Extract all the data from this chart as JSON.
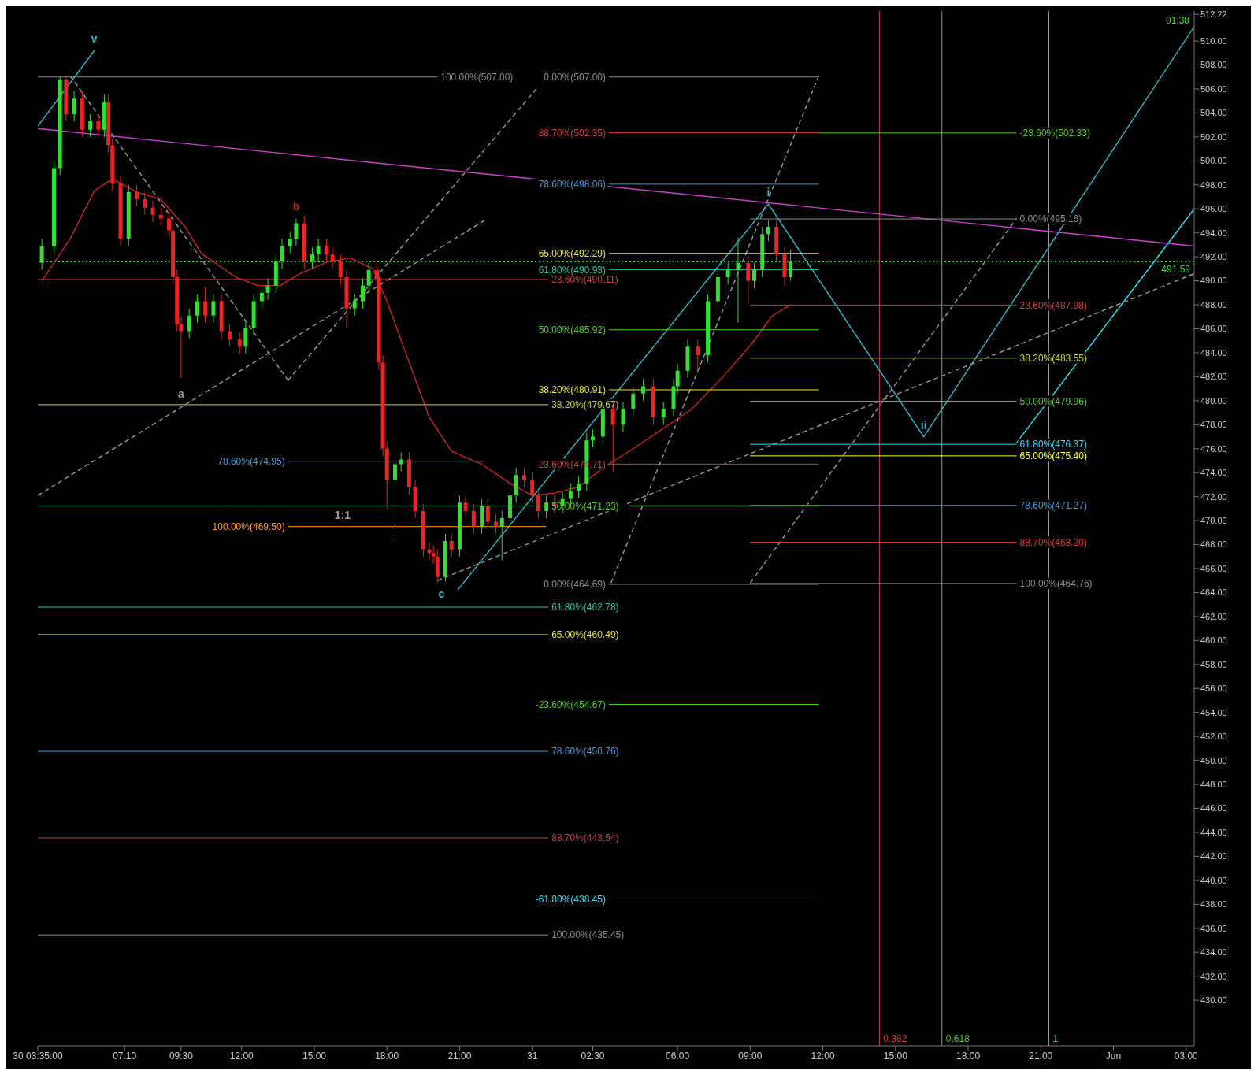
{
  "chart_data": {
    "type": "candlestick",
    "xlim": [
      "--05-30T03:35",
      "--06-01T03:20"
    ],
    "ylim": [
      426.2,
      512.5
    ],
    "xticks": [
      {
        "value": "--05-30T03:35",
        "label": "30 03:35:00"
      },
      {
        "value": "--05-30T07:10",
        "label": "07:10"
      },
      {
        "value": "--05-30T09:30",
        "label": "09:30"
      },
      {
        "value": "--05-30T12:00",
        "label": "12:00"
      },
      {
        "value": "--05-30T15:00",
        "label": "15:00"
      },
      {
        "value": "--05-30T18:00",
        "label": "18:00"
      },
      {
        "value": "--05-30T21:00",
        "label": "21:00"
      },
      {
        "value": "--05-31T00:00",
        "label": "31"
      },
      {
        "value": "--05-31T02:30",
        "label": "02:30"
      },
      {
        "value": "--05-31T06:00",
        "label": "06:00"
      },
      {
        "value": "--05-31T09:00",
        "label": "09:00"
      },
      {
        "value": "--05-31T12:00",
        "label": "12:00"
      },
      {
        "value": "--05-31T15:00",
        "label": "15:00"
      },
      {
        "value": "--05-31T18:00",
        "label": "18:00"
      },
      {
        "value": "--05-31T21:00",
        "label": "21:00"
      },
      {
        "value": "--06-01T00:00",
        "label": "Jun"
      },
      {
        "value": "--06-01T03:00",
        "label": "03:00"
      }
    ],
    "yticks": [
      {
        "value": 430,
        "label": "430.00"
      },
      {
        "value": 432,
        "label": "432.00"
      },
      {
        "value": 434,
        "label": "434.00"
      },
      {
        "value": 436,
        "label": "436.00"
      },
      {
        "value": 438,
        "label": "438.00"
      },
      {
        "value": 440,
        "label": "440.00"
      },
      {
        "value": 442,
        "label": "442.00"
      },
      {
        "value": 444,
        "label": "444.00"
      },
      {
        "value": 446,
        "label": "446.00"
      },
      {
        "value": 448,
        "label": "448.00"
      },
      {
        "value": 450,
        "label": "450.00"
      },
      {
        "value": 452,
        "label": "452.00"
      },
      {
        "value": 454,
        "label": "454.00"
      },
      {
        "value": 456,
        "label": "456.00"
      },
      {
        "value": 458,
        "label": "458.00"
      },
      {
        "value": 460,
        "label": "460.00"
      },
      {
        "value": 462,
        "label": "462.00"
      },
      {
        "value": 464,
        "label": "464.00"
      },
      {
        "value": 466,
        "label": "466.00"
      },
      {
        "value": 468,
        "label": "468.00"
      },
      {
        "value": 470,
        "label": "470.00"
      },
      {
        "value": 472,
        "label": "472.00"
      },
      {
        "value": 474,
        "label": "474.00"
      },
      {
        "value": 476,
        "label": "476.00"
      },
      {
        "value": 478,
        "label": "478.00"
      },
      {
        "value": 480,
        "label": "480.00"
      },
      {
        "value": 482,
        "label": "482.00"
      },
      {
        "value": 484,
        "label": "484.00"
      },
      {
        "value": 486,
        "label": "486.00"
      },
      {
        "value": 488,
        "label": "488.00"
      },
      {
        "value": 490,
        "label": "490.00"
      },
      {
        "value": 492,
        "label": "492.00"
      },
      {
        "value": 494,
        "label": "494.00"
      },
      {
        "value": 496,
        "label": "496.00"
      },
      {
        "value": 498,
        "label": "498.00"
      },
      {
        "value": 500,
        "label": "500.00"
      },
      {
        "value": 502,
        "label": "502.00"
      },
      {
        "value": 504,
        "label": "504.00"
      },
      {
        "value": 506,
        "label": "506.00"
      },
      {
        "value": 508,
        "label": "508.00"
      },
      {
        "value": 510,
        "label": "510.00"
      },
      {
        "value": 512.22,
        "label": "512.22"
      }
    ],
    "x": [
      "--05-30T03:45",
      "--05-30T04:15",
      "--05-30T04:30",
      "--05-30T04:45",
      "--05-30T05:05",
      "--05-30T05:25",
      "--05-30T05:45",
      "--05-30T06:05",
      "--05-30T06:20",
      "--05-30T06:30",
      "--05-30T06:40",
      "--05-30T07:00",
      "--05-30T07:20",
      "--05-30T07:40",
      "--05-30T08:00",
      "--05-30T08:20",
      "--05-30T08:40",
      "--05-30T09:00",
      "--05-30T09:10",
      "--05-30T09:20",
      "--05-30T09:30",
      "--05-30T09:50",
      "--05-30T10:10",
      "--05-30T10:30",
      "--05-30T10:50",
      "--05-30T11:10",
      "--05-30T11:30",
      "--05-30T11:55",
      "--05-30T12:10",
      "--05-30T12:30",
      "--05-30T12:50",
      "--05-30T13:05",
      "--05-30T13:25",
      "--05-30T13:40",
      "--05-30T14:00",
      "--05-30T14:15",
      "--05-30T14:35",
      "--05-30T14:55",
      "--05-30T15:10",
      "--05-30T15:30",
      "--05-30T15:45",
      "--05-30T16:05",
      "--05-30T16:20",
      "--05-30T16:40",
      "--05-30T17:00",
      "--05-30T17:15",
      "--05-30T17:35",
      "--05-30T17:40",
      "--05-30T17:50",
      "--05-30T18:00",
      "--05-30T18:20",
      "--05-30T18:35",
      "--05-30T18:55",
      "--05-30T19:10",
      "--05-30T19:30",
      "--05-30T19:45",
      "--05-30T19:55",
      "--05-30T20:05",
      "--05-30T20:25",
      "--05-30T20:40",
      "--05-30T21:00",
      "--05-30T21:15",
      "--05-30T21:35",
      "--05-30T21:55",
      "--05-30T22:10",
      "--05-30T22:30",
      "--05-30T22:45",
      "--05-30T23:05",
      "--05-30T23:20",
      "--05-30T23:40",
      "--05-31T00:00",
      "--05-31T00:15",
      "--05-31T00:35",
      "--05-31T00:55",
      "--05-31T01:15",
      "--05-31T01:35",
      "--05-31T01:55",
      "--05-31T02:15",
      "--05-31T02:30",
      "--05-31T02:55",
      "--05-31T03:20",
      "--05-31T03:45",
      "--05-31T04:10",
      "--05-31T04:35",
      "--05-31T05:00",
      "--05-31T05:25",
      "--05-31T05:50",
      "--05-31T06:00",
      "--05-31T06:25",
      "--05-31T06:50",
      "--05-31T07:15",
      "--05-31T07:40",
      "--05-31T08:05",
      "--05-31T08:30",
      "--05-31T08:55",
      "--05-31T09:10",
      "--05-31T09:30",
      "--05-31T09:45",
      "--05-31T10:05",
      "--05-31T10:25",
      "--05-31T10:40"
    ],
    "ohlc": [
      [
        491.5,
        493.5,
        490.9,
        492.9
      ],
      [
        492.9,
        500.0,
        492.3,
        499.4
      ],
      [
        499.4,
        507.0,
        498.8,
        506.8
      ],
      [
        506.8,
        507.0,
        503.3,
        503.9
      ],
      [
        503.9,
        505.8,
        503.3,
        505.2
      ],
      [
        505.2,
        505.8,
        502.0,
        502.6
      ],
      [
        502.6,
        503.9,
        502.0,
        503.3
      ],
      [
        503.3,
        503.9,
        502.0,
        502.6
      ],
      [
        502.6,
        505.5,
        502.0,
        504.9
      ],
      [
        504.9,
        505.5,
        500.7,
        501.3
      ],
      [
        501.3,
        501.9,
        497.5,
        498.1
      ],
      [
        498.1,
        498.7,
        492.9,
        493.5
      ],
      [
        493.5,
        498.0,
        492.9,
        497.4
      ],
      [
        497.4,
        498.0,
        496.2,
        496.8
      ],
      [
        496.8,
        497.4,
        495.5,
        496.1
      ],
      [
        496.1,
        496.7,
        494.9,
        495.5
      ],
      [
        495.5,
        496.1,
        494.6,
        495.2
      ],
      [
        495.2,
        495.8,
        493.6,
        494.2
      ],
      [
        494.2,
        494.8,
        489.7,
        490.3
      ],
      [
        490.3,
        490.9,
        485.8,
        486.4
      ],
      [
        486.4,
        487.0,
        481.9,
        485.8
      ],
      [
        485.8,
        487.7,
        485.2,
        487.1
      ],
      [
        487.1,
        488.9,
        486.5,
        488.3
      ],
      [
        488.3,
        489.5,
        486.5,
        487.1
      ],
      [
        487.1,
        488.9,
        486.5,
        488.3
      ],
      [
        488.3,
        488.9,
        485.2,
        485.8
      ],
      [
        485.8,
        486.4,
        484.5,
        485.1
      ],
      [
        485.1,
        485.7,
        483.9,
        484.5
      ],
      [
        484.5,
        486.7,
        483.9,
        486.1
      ],
      [
        486.1,
        488.9,
        485.5,
        488.3
      ],
      [
        488.3,
        489.6,
        487.7,
        489.0
      ],
      [
        489.0,
        490.2,
        488.4,
        489.6
      ],
      [
        489.6,
        492.2,
        489.0,
        491.6
      ],
      [
        491.6,
        493.5,
        491.0,
        492.9
      ],
      [
        492.9,
        494.1,
        492.3,
        493.5
      ],
      [
        493.5,
        495.2,
        492.9,
        494.8
      ],
      [
        494.8,
        495.4,
        491.0,
        491.6
      ],
      [
        491.6,
        492.8,
        491.0,
        492.2
      ],
      [
        492.2,
        493.5,
        491.6,
        492.9
      ],
      [
        492.9,
        493.5,
        491.6,
        492.2
      ],
      [
        492.2,
        492.8,
        491.0,
        491.6
      ],
      [
        491.6,
        492.2,
        489.7,
        490.3
      ],
      [
        490.3,
        490.9,
        486.1,
        487.7
      ],
      [
        487.7,
        488.9,
        487.1,
        488.3
      ],
      [
        488.3,
        490.2,
        487.7,
        489.6
      ],
      [
        489.6,
        491.5,
        489.0,
        490.9
      ],
      [
        490.9,
        491.5,
        489.7,
        490.3
      ],
      [
        490.3,
        490.9,
        482.6,
        483.2
      ],
      [
        483.2,
        483.8,
        475.4,
        476.0
      ],
      [
        476.0,
        476.6,
        471.0,
        473.4
      ],
      [
        473.4,
        477.0,
        468.3,
        474.7
      ],
      [
        474.7,
        475.7,
        474.1,
        475.1
      ],
      [
        475.1,
        475.7,
        472.2,
        472.8
      ],
      [
        472.8,
        473.4,
        470.2,
        470.8
      ],
      [
        470.8,
        471.4,
        467.0,
        467.6
      ],
      [
        467.6,
        468.2,
        466.7,
        467.3
      ],
      [
        467.3,
        467.9,
        466.4,
        467.0
      ],
      [
        467.0,
        467.6,
        464.8,
        465.3
      ],
      [
        465.3,
        468.9,
        464.9,
        468.3
      ],
      [
        468.3,
        468.9,
        467.0,
        467.6
      ],
      [
        467.6,
        472.1,
        467.0,
        471.5
      ],
      [
        471.5,
        472.1,
        470.2,
        470.8
      ],
      [
        470.8,
        471.4,
        468.9,
        469.5
      ],
      [
        469.5,
        471.8,
        468.9,
        471.2
      ],
      [
        471.2,
        471.8,
        469.3,
        469.9
      ],
      [
        469.9,
        470.5,
        468.9,
        469.5
      ],
      [
        469.5,
        470.8,
        466.7,
        470.2
      ],
      [
        470.2,
        472.7,
        469.6,
        472.1
      ],
      [
        472.1,
        474.4,
        471.5,
        473.8
      ],
      [
        473.8,
        474.4,
        472.8,
        473.4
      ],
      [
        473.4,
        474.0,
        471.5,
        472.1
      ],
      [
        472.1,
        472.7,
        470.2,
        470.8
      ],
      [
        470.8,
        472.1,
        470.2,
        471.5
      ],
      [
        471.5,
        472.1,
        470.6,
        471.2
      ],
      [
        471.2,
        472.4,
        470.6,
        471.8
      ],
      [
        471.8,
        473.1,
        471.2,
        472.5
      ],
      [
        472.5,
        473.7,
        471.9,
        473.1
      ],
      [
        473.1,
        477.3,
        472.5,
        476.7
      ],
      [
        476.7,
        477.6,
        476.1,
        477.0
      ],
      [
        477.0,
        479.9,
        476.4,
        479.3
      ],
      [
        479.3,
        479.9,
        474.0,
        478.0
      ],
      [
        478.0,
        479.9,
        477.4,
        479.3
      ],
      [
        479.3,
        481.2,
        478.7,
        480.6
      ],
      [
        480.6,
        481.8,
        480.0,
        481.2
      ],
      [
        481.2,
        481.8,
        478.0,
        478.6
      ],
      [
        478.6,
        479.9,
        478.0,
        479.3
      ],
      [
        479.3,
        481.8,
        478.7,
        481.2
      ],
      [
        481.2,
        483.1,
        480.6,
        482.5
      ],
      [
        482.5,
        485.1,
        481.9,
        484.5
      ],
      [
        484.5,
        485.1,
        482.3,
        483.8
      ],
      [
        483.8,
        488.9,
        483.2,
        488.3
      ],
      [
        488.3,
        490.9,
        487.7,
        490.3
      ],
      [
        490.3,
        491.5,
        489.7,
        490.9
      ],
      [
        490.9,
        493.6,
        486.5,
        491.5
      ],
      [
        491.5,
        492.1,
        488.1,
        490.0
      ],
      [
        490.0,
        491.5,
        489.4,
        490.9
      ],
      [
        490.9,
        494.5,
        490.3,
        493.9
      ],
      [
        493.9,
        495.0,
        493.3,
        494.5
      ],
      [
        494.5,
        495.0,
        491.6,
        492.2
      ],
      [
        492.2,
        492.8,
        489.6,
        490.3
      ],
      [
        490.3,
        492.6,
        490.0,
        491.6
      ]
    ],
    "colors": [
      "#33dd33",
      "#33dd33",
      "#33dd33",
      "#ee2222",
      "#33dd33",
      "#ee2222",
      "#33dd33",
      "#ee2222",
      "#33dd33",
      "#ee2222",
      "#ee2222",
      "#ee2222",
      "#33dd33",
      "#ee2222",
      "#ee2222",
      "#ee2222",
      "#ee2222",
      "#ee2222",
      "#ee2222",
      "#ee2222",
      "#ee2222",
      "#33dd33",
      "#33dd33",
      "#ee2222",
      "#33dd33",
      "#ee2222",
      "#ee2222",
      "#ee2222",
      "#33dd33",
      "#33dd33",
      "#33dd33",
      "#33dd33",
      "#33dd33",
      "#33dd33",
      "#33dd33",
      "#33dd33",
      "#ee2222",
      "#33dd33",
      "#33dd33",
      "#ee2222",
      "#ee2222",
      "#ee2222",
      "#ee2222",
      "#33dd33",
      "#33dd33",
      "#33dd33",
      "#ee2222",
      "#ee2222",
      "#ee2222",
      "#ee2222",
      "#33dd33",
      "#33dd33",
      "#ee2222",
      "#ee2222",
      "#ee2222",
      "#ee2222",
      "#ee2222",
      "#ee2222",
      "#33dd33",
      "#ee2222",
      "#33dd33",
      "#ee2222",
      "#ee2222",
      "#33dd33",
      "#ee2222",
      "#ee2222",
      "#33dd33",
      "#33dd33",
      "#33dd33",
      "#ee2222",
      "#ee2222",
      "#ee2222",
      "#33dd33",
      "#ee2222",
      "#33dd33",
      "#33dd33",
      "#33dd33",
      "#33dd33",
      "#33dd33",
      "#33dd33",
      "#ee2222",
      "#33dd33",
      "#33dd33",
      "#33dd33",
      "#ee2222",
      "#33dd33",
      "#33dd33",
      "#33dd33",
      "#33dd33",
      "#ee2222",
      "#33dd33",
      "#33dd33",
      "#33dd33",
      "#33dd33",
      "#ee2222",
      "#33dd33",
      "#33dd33",
      "#33dd33",
      "#ee2222",
      "#ee2222",
      "#33dd33"
    ],
    "series": [
      {
        "type": "line",
        "color": "#cc2222",
        "x": [
          "--05-30T03:45",
          "--05-30T04:55",
          "--05-30T05:55",
          "--05-30T06:40",
          "--05-30T07:40",
          "--05-30T08:40",
          "--05-30T09:40",
          "--05-30T10:20",
          "--05-30T11:45",
          "--05-30T12:40",
          "--05-30T13:35",
          "--05-30T14:25",
          "--05-30T15:35",
          "--05-30T16:30",
          "--05-30T17:25",
          "--05-30T18:00",
          "--05-30T18:55",
          "--05-30T19:45",
          "--05-30T20:40",
          "--05-30T21:55",
          "--05-30T23:05",
          "--05-31T00:00",
          "--05-31T00:55",
          "--05-31T01:55",
          "--05-31T02:55",
          "--05-31T04:10",
          "--05-31T05:25",
          "--05-31T06:35",
          "--05-31T07:50",
          "--05-31T09:05",
          "--05-31T09:55",
          "--05-31T10:40"
        ],
        "values": [
          490.0,
          493.5,
          497.5,
          498.5,
          497.4,
          496.8,
          494.5,
          492.3,
          490.3,
          489.6,
          489.6,
          490.6,
          491.6,
          491.9,
          491.0,
          488.3,
          483.2,
          478.6,
          475.8,
          474.7,
          473.1,
          472.1,
          472.3,
          472.8,
          474.4,
          476.0,
          477.7,
          479.3,
          481.9,
          484.8,
          487.1,
          488.0
        ]
      },
      {
        "type": "line",
        "color": "#d040d0",
        "x": [
          "--05-30T03:35",
          "--06-01T03:20"
        ],
        "values": [
          502.7,
          492.9
        ]
      },
      {
        "type": "line",
        "color": "#2bbcd0",
        "x": [
          "--05-30T03:35",
          "--05-30T05:55"
        ],
        "values": [
          502.9,
          509.2
        ]
      },
      {
        "type": "line",
        "color": "#2bbcd0",
        "x": [
          "--05-30T20:55",
          "--05-31T09:45",
          "--05-31T16:10",
          "--06-01T03:20"
        ],
        "values": [
          464.2,
          496.4,
          477.0,
          511.2
        ]
      },
      {
        "type": "line",
        "color": "#22e6ff",
        "x": [
          "--05-31T20:00",
          "--06-01T03:20"
        ],
        "values": [
          476.5,
          496.0
        ]
      },
      {
        "type": "line",
        "color": "#9a9a9a",
        "line_style": "dashed",
        "x": [
          "--05-30T03:35",
          "--05-30T22:00"
        ],
        "values": [
          472.1,
          495.0
        ]
      },
      {
        "type": "line",
        "color": "#9a9a9a",
        "line_style": "dashed",
        "x": [
          "--05-30T04:55",
          "--05-30T13:55"
        ],
        "values": [
          507.1,
          481.7
        ]
      },
      {
        "type": "line",
        "color": "#9a9a9a",
        "line_style": "dashed",
        "x": [
          "--05-30T13:55",
          "--05-31T00:10"
        ],
        "values": [
          481.7,
          506.0
        ]
      },
      {
        "type": "line",
        "color": "#9a9a9a",
        "line_style": "dashed",
        "x": [
          "--05-31T03:15",
          "--05-31T11:50"
        ],
        "values": [
          464.8,
          507.1
        ]
      },
      {
        "type": "line",
        "color": "#9a9a9a",
        "line_style": "dashed",
        "x": [
          "--05-30T20:05",
          "--06-01T03:20"
        ],
        "values": [
          465.0,
          490.6
        ]
      },
      {
        "type": "line",
        "color": "#9a9a9a",
        "line_style": "dashed",
        "x": [
          "--05-31T09:00",
          "--05-31T20:00"
        ],
        "values": [
          464.8,
          495.2
        ]
      },
      {
        "type": "line",
        "name": "100.00%(507.00)",
        "color": "#8c8c8c",
        "x": [
          "--05-30T03:35",
          "--05-30T20:05"
        ],
        "values": [
          507.0,
          507.0
        ]
      },
      {
        "type": "line",
        "name": "0.00%(507.00)",
        "color": "#8c8c8c",
        "x": [
          "--05-31T03:10",
          "--05-31T11:50"
        ],
        "values": [
          507.0,
          507.0
        ]
      },
      {
        "type": "line",
        "name": "88.70%(502.35)",
        "color": "#d23a3a",
        "x": [
          "--05-31T03:10",
          "--05-31T11:50"
        ],
        "values": [
          502.35,
          502.35
        ]
      },
      {
        "type": "line",
        "name": "78.60%(498.06)",
        "color": "#3a9ad9",
        "x": [
          "--05-31T03:10",
          "--05-31T11:50"
        ],
        "values": [
          498.06,
          498.06
        ]
      },
      {
        "type": "line",
        "name": "65.00%(492.29)",
        "color": "#e8e820",
        "x": [
          "--05-31T03:10",
          "--05-31T11:50"
        ],
        "values": [
          492.29,
          492.29
        ]
      },
      {
        "type": "line",
        "name": "61.80%(490.93)",
        "color": "#2ec4a0",
        "x": [
          "--05-31T03:10",
          "--05-31T11:50"
        ],
        "values": [
          490.93,
          490.93
        ]
      },
      {
        "type": "line",
        "name": "50.00%(485.92)",
        "color": "#55cc22",
        "x": [
          "--05-31T03:10",
          "--05-31T11:50"
        ],
        "values": [
          485.92,
          485.92
        ]
      },
      {
        "type": "line",
        "name": "38.20%(480.91)",
        "color": "#e8e820",
        "x": [
          "--05-31T03:10",
          "--05-31T11:50"
        ],
        "values": [
          480.91,
          480.91
        ]
      },
      {
        "type": "line",
        "name": "23.60%(474.71)",
        "color": "#d23a3a",
        "x": [
          "--05-31T03:10",
          "--05-31T11:50"
        ],
        "values": [
          474.71,
          474.71
        ]
      },
      {
        "type": "line",
        "color": "#55cc22",
        "x": [
          "--05-31T04:00",
          "--05-31T11:50"
        ],
        "values": [
          471.23,
          471.23
        ]
      },
      {
        "type": "line",
        "name": "0.00%(464.69)",
        "color": "#8c8c8c",
        "x": [
          "--05-31T03:10",
          "--05-31T11:50"
        ],
        "values": [
          464.69,
          464.69
        ]
      },
      {
        "type": "line",
        "name": "-23.60%(454.67)",
        "color": "#55cc22",
        "x": [
          "--05-31T03:10",
          "--05-31T11:50"
        ],
        "values": [
          454.67,
          454.67
        ]
      },
      {
        "type": "line",
        "name": "-61.80%(438.45)",
        "color": "#22e6ff",
        "x": [
          "--05-31T03:10",
          "--05-31T11:50"
        ],
        "values": [
          438.45,
          438.45
        ]
      },
      {
        "type": "line",
        "name": "23.60%(490.11)",
        "color": "#d23a3a",
        "x": [
          "--05-30T03:35",
          "--05-31T00:40"
        ],
        "values": [
          490.11,
          490.11
        ]
      },
      {
        "type": "line",
        "name": "38.20%(479.67)",
        "color": "#c8d820",
        "x": [
          "--05-30T03:35",
          "--05-31T00:40"
        ],
        "values": [
          479.67,
          479.67
        ]
      },
      {
        "type": "line",
        "name": "50.00%(471.23)",
        "color": "#55cc22",
        "x": [
          "--05-30T03:35",
          "--05-31T00:40"
        ],
        "values": [
          471.23,
          471.23
        ]
      },
      {
        "type": "line",
        "name": "61.80%(462.78)",
        "color": "#2ec4a0",
        "x": [
          "--05-30T03:35",
          "--05-31T00:40"
        ],
        "values": [
          462.78,
          462.78
        ]
      },
      {
        "type": "line",
        "name": "65.00%(460.49)",
        "color": "#e8e820",
        "x": [
          "--05-30T03:35",
          "--05-31T00:40"
        ],
        "values": [
          460.49,
          460.49
        ]
      },
      {
        "type": "line",
        "name": "78.60%(450.76)",
        "color": "#3a9ad9",
        "x": [
          "--05-30T03:35",
          "--05-31T00:40"
        ],
        "values": [
          450.76,
          450.76
        ]
      },
      {
        "type": "line",
        "name": "88.70%(443.54)",
        "color": "#d23a3a",
        "x": [
          "--05-30T03:35",
          "--05-31T00:40"
        ],
        "values": [
          443.54,
          443.54
        ]
      },
      {
        "type": "line",
        "name": "100.00%(435.45)",
        "color": "#8c8c8c",
        "x": [
          "--05-30T03:35",
          "--05-31T00:40"
        ],
        "values": [
          435.45,
          435.45
        ]
      },
      {
        "type": "line",
        "name": "78.60%(474.95)",
        "color": "#3a9ad9",
        "x": [
          "--05-30T13:55",
          "--05-30T22:00"
        ],
        "values": [
          474.95,
          474.95
        ]
      },
      {
        "type": "line",
        "name": "100.00%(469.50)",
        "color": "#ff9a1a",
        "x": [
          "--05-30T13:55",
          "--05-31T00:35"
        ],
        "values": [
          469.5,
          469.5
        ]
      },
      {
        "type": "line",
        "name": "-23.60%(502.33)",
        "color": "#55cc22",
        "x": [
          "--05-31T11:50",
          "--05-31T20:00"
        ],
        "values": [
          502.33,
          502.33
        ]
      },
      {
        "type": "line",
        "name": "0.00%(495.16)",
        "color": "#8c8c8c",
        "x": [
          "--05-31T09:00",
          "--05-31T20:00"
        ],
        "values": [
          495.16,
          495.16
        ]
      },
      {
        "type": "line",
        "name": "23.60%(487.98)",
        "color": "#d23a3a",
        "x": [
          "--05-31T09:00",
          "--05-31T20:00"
        ],
        "values": [
          487.98,
          487.98
        ]
      },
      {
        "type": "line",
        "name": "38.20%(483.55)",
        "color": "#c8d820",
        "x": [
          "--05-31T09:00",
          "--05-31T20:00"
        ],
        "values": [
          483.55,
          483.55
        ]
      },
      {
        "type": "line",
        "name": "50.00%(479.96)",
        "color": "#55cc22",
        "x": [
          "--05-31T09:00",
          "--05-31T20:00"
        ],
        "values": [
          479.96,
          479.96
        ]
      },
      {
        "type": "line",
        "name": "61.80%(476.37)",
        "color": "#22e6ff",
        "x": [
          "--05-31T09:00",
          "--05-31T20:00"
        ],
        "values": [
          476.37,
          476.37
        ]
      },
      {
        "type": "line",
        "name": "65.00%(475.40)",
        "color": "#ffff30",
        "x": [
          "--05-31T09:00",
          "--05-31T20:00"
        ],
        "values": [
          475.4,
          475.4
        ]
      },
      {
        "type": "line",
        "name": "78.60%(471.27)",
        "color": "#3a9ad9",
        "x": [
          "--05-31T09:00",
          "--05-31T20:00"
        ],
        "values": [
          471.27,
          471.27
        ]
      },
      {
        "type": "line",
        "name": "88.70%(468.20)",
        "color": "#d23a3a",
        "x": [
          "--05-31T09:00",
          "--05-31T20:00"
        ],
        "values": [
          468.2,
          468.2
        ]
      },
      {
        "type": "line",
        "name": "100.00%(464.76)",
        "color": "#8c8c8c",
        "x": [
          "--05-31T09:00",
          "--05-31T20:00"
        ],
        "values": [
          464.76,
          464.76
        ]
      }
    ],
    "ref_lines": [
      {
        "axis": "x",
        "value": "--05-31T14:20",
        "label": "0.382",
        "color": "#d23a3a"
      },
      {
        "axis": "x",
        "value": "--05-31T16:55",
        "label": "0.618",
        "color": "#55cc22"
      },
      {
        "axis": "x",
        "value": "--05-31T21:20",
        "label": "1",
        "color": "#3ad070"
      },
      {
        "axis": "y",
        "value": 491.59,
        "label": "491.59",
        "color": "#33dd33",
        "line_style": "dotted"
      }
    ],
    "annotations": [
      {
        "text": "v",
        "x": "--05-30T05:55",
        "y": 509.2
      },
      {
        "text": "b",
        "x": "--05-30T14:15",
        "y": 495.2
      },
      {
        "text": "a",
        "x": "--05-30T09:30",
        "y": 479.6
      },
      {
        "text": "c",
        "x": "--05-30T20:15",
        "y": 462.9
      },
      {
        "text": "1:1",
        "x": "--05-30T16:10",
        "y": 469.5
      },
      {
        "text": "i",
        "x": "--05-31T09:45",
        "y": 496.4
      },
      {
        "text": "ii",
        "x": "--05-31T16:10",
        "y": 477.0
      },
      "01:38"
    ],
    "legend": false
  }
}
